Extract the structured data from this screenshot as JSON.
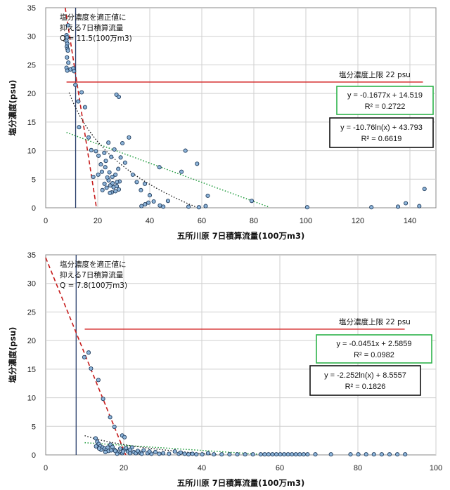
{
  "chart_data": [
    {
      "type": "scatter",
      "xlabel": "五所川原 7日積算流量(100万m3)",
      "ylabel": "塩分濃度(psu)",
      "xlim": [
        0,
        150
      ],
      "ylim": [
        0,
        35
      ],
      "xticks": [
        0,
        20,
        40,
        60,
        80,
        100,
        120,
        140
      ],
      "yticks": [
        0,
        5,
        10,
        15,
        20,
        25,
        30,
        35
      ],
      "grid": true,
      "annotation_lines": [
        "塩分濃度を適正値に",
        "抑える7日積算流量",
        "Q = 11.5(100万m3)"
      ],
      "threshold_label": "塩分濃度上限 22 psu",
      "threshold_y": 22,
      "threshold_x_range": [
        8,
        145
      ],
      "vertical_line_x": 11.5,
      "linear_eq": [
        "y = -0.1677x + 14.519",
        "R² = 0.2722"
      ],
      "log_eq": [
        "y = -10.76ln(x) + 43.793",
        "R² = 0.6619"
      ],
      "linear_fit": {
        "slope": -0.1677,
        "intercept": 14.519,
        "x_range": [
          8,
          86
        ]
      },
      "log_fit": {
        "a": -10.76,
        "b": 43.793,
        "x_range": [
          9,
          60
        ]
      },
      "red_line": {
        "x": [
          7.5,
          19.5
        ],
        "y": [
          35,
          0
        ]
      },
      "points": [
        [
          8,
          30.2
        ],
        [
          8.2,
          29.8
        ],
        [
          8,
          29.2
        ],
        [
          8.3,
          28.7
        ],
        [
          8.1,
          28.2
        ],
        [
          8.4,
          27.8
        ],
        [
          8.6,
          31.9
        ],
        [
          8.5,
          27.5
        ],
        [
          8.2,
          26.3
        ],
        [
          8.7,
          25.4
        ],
        [
          8,
          24.5
        ],
        [
          8.3,
          24
        ],
        [
          9.5,
          24.2
        ],
        [
          10.6,
          24.4
        ],
        [
          10.9,
          23.9
        ],
        [
          11.4,
          21.5
        ],
        [
          12.5,
          18.6
        ],
        [
          13.8,
          20.2
        ],
        [
          15.1,
          17.6
        ],
        [
          12.8,
          14.1
        ],
        [
          16.5,
          12.3
        ],
        [
          17.5,
          10.1
        ],
        [
          18.3,
          5.4
        ],
        [
          19.3,
          9.9
        ],
        [
          20.3,
          9.1
        ],
        [
          21.2,
          7.6
        ],
        [
          22.5,
          9.6
        ],
        [
          23.1,
          8.2
        ],
        [
          24.5,
          6.2
        ],
        [
          25.6,
          5.4
        ],
        [
          26.8,
          5.8
        ],
        [
          27.2,
          19.8
        ],
        [
          28.1,
          19.4
        ],
        [
          28.8,
          8.8
        ],
        [
          29.5,
          11.3
        ],
        [
          30.5,
          7.9
        ],
        [
          32,
          12.3
        ],
        [
          33.5,
          5.8
        ],
        [
          35,
          4.5
        ],
        [
          36.6,
          3.1
        ],
        [
          38.1,
          4.2
        ],
        [
          40,
          2.2
        ],
        [
          41.5,
          1.1
        ],
        [
          43.7,
          7.1
        ],
        [
          45.2,
          0.2
        ],
        [
          47,
          1.2
        ],
        [
          52.2,
          6.3
        ],
        [
          53.7,
          10
        ],
        [
          54.9,
          0.2
        ],
        [
          58.2,
          7.7
        ],
        [
          62.3,
          2.1
        ],
        [
          61.5,
          0.3
        ],
        [
          79.2,
          1.2
        ],
        [
          100.5,
          0.1
        ],
        [
          125.2,
          0.1
        ],
        [
          135.4,
          0.2
        ],
        [
          138.4,
          0.8
        ],
        [
          143.6,
          0.3
        ],
        [
          145.6,
          3.3
        ],
        [
          21.8,
          3.1
        ],
        [
          22.6,
          4.2
        ],
        [
          23.4,
          3.5
        ],
        [
          24.2,
          4.8
        ],
        [
          24.8,
          3.9
        ],
        [
          25.4,
          2.7
        ],
        [
          25.7,
          4.3
        ],
        [
          26.1,
          3.6
        ],
        [
          26.8,
          2.9
        ],
        [
          27.3,
          3.8
        ],
        [
          28.1,
          3.2
        ],
        [
          24.1,
          11.4
        ],
        [
          26.4,
          10.2
        ],
        [
          25.2,
          8.9
        ],
        [
          22.9,
          7.1
        ],
        [
          21.6,
          6.3
        ],
        [
          20.2,
          5.8
        ],
        [
          27.9,
          6.8
        ],
        [
          28.4,
          4.6
        ],
        [
          23.7,
          5.3
        ],
        [
          36.8,
          0.3
        ],
        [
          38.2,
          0.6
        ],
        [
          39.5,
          0.9
        ],
        [
          43.9,
          0.4
        ],
        [
          58.9,
          0.1
        ],
        [
          27.4,
          4.5
        ],
        [
          24.7,
          2.6
        ]
      ]
    },
    {
      "type": "scatter",
      "xlabel": "五所川原 7日積算流量(100万m3)",
      "ylabel": "塩分濃度(psu)",
      "xlim": [
        0,
        100
      ],
      "ylim": [
        0,
        35
      ],
      "xticks": [
        0,
        20,
        40,
        60,
        80,
        100
      ],
      "yticks": [
        0,
        5,
        10,
        15,
        20,
        25,
        30,
        35
      ],
      "grid": true,
      "annotation_lines": [
        "塩分濃度を適正値に",
        "抑える7日積算流量",
        "Q = 7.8(100万m3)"
      ],
      "threshold_label": "塩分濃度上限 22 psu",
      "threshold_y": 22,
      "threshold_x_range": [
        10,
        92
      ],
      "vertical_line_x": 7.8,
      "linear_eq": [
        "y = -0.0451x + 2.5859",
        "R² = 0.0982"
      ],
      "log_eq": [
        "y = -2.252ln(x) + 8.5557",
        "R² = 0.1826"
      ],
      "linear_fit": {
        "slope": -0.0451,
        "intercept": 2.5859,
        "x_range": [
          10,
          57
        ]
      },
      "log_fit": {
        "a": -2.252,
        "b": 8.5557,
        "x_range": [
          10,
          44
        ]
      },
      "red_line": {
        "x": [
          0,
          20.5
        ],
        "y": [
          34.5,
          0
        ]
      },
      "points": [
        [
          9.9,
          17.1
        ],
        [
          11,
          17.9
        ],
        [
          11.6,
          15.1
        ],
        [
          13.5,
          13.1
        ],
        [
          14.7,
          9.8
        ],
        [
          16.5,
          6.6
        ],
        [
          17.6,
          4.9
        ],
        [
          19.6,
          3.4
        ],
        [
          20.2,
          3.1
        ],
        [
          12.8,
          2.9
        ],
        [
          13.2,
          2.3
        ],
        [
          13.6,
          1.9
        ],
        [
          14,
          1.5
        ],
        [
          14.6,
          1.3
        ],
        [
          15.1,
          1.1
        ],
        [
          15.6,
          0.9
        ],
        [
          16.1,
          0.7
        ],
        [
          16.6,
          1.8
        ],
        [
          17.1,
          1.4
        ],
        [
          17.6,
          0.9
        ],
        [
          18.1,
          0.6
        ],
        [
          18.6,
          0.4
        ],
        [
          19.1,
          1.1
        ],
        [
          19.6,
          0.3
        ],
        [
          20.1,
          0.9
        ],
        [
          20.6,
          1.2
        ],
        [
          21.1,
          0.6
        ],
        [
          21.6,
          0.3
        ],
        [
          22.1,
          1.3
        ],
        [
          22.6,
          0.5
        ],
        [
          23.1,
          0.3
        ],
        [
          24.1,
          0.4
        ],
        [
          25.1,
          0.8
        ],
        [
          26.1,
          0.3
        ],
        [
          27.1,
          0.2
        ],
        [
          28.1,
          0.5
        ],
        [
          29.1,
          0.2
        ],
        [
          30.1,
          0.3
        ],
        [
          31.6,
          0.2
        ],
        [
          33.1,
          0.6
        ],
        [
          34.1,
          0.2
        ],
        [
          35.6,
          0.2
        ],
        [
          36.6,
          0.1
        ],
        [
          37.6,
          0.2
        ],
        [
          38.6,
          0.1
        ],
        [
          40.1,
          0.1
        ],
        [
          41.6,
          0.3
        ],
        [
          43.1,
          0.1
        ],
        [
          45.1,
          0.1
        ],
        [
          47.1,
          0.1
        ],
        [
          49.1,
          0.1
        ],
        [
          51.1,
          0.1
        ],
        [
          53.1,
          0.1
        ],
        [
          55.1,
          0.1
        ],
        [
          56.1,
          0.1
        ],
        [
          57.1,
          0.1
        ],
        [
          58.1,
          0.1
        ],
        [
          59.1,
          0.1
        ],
        [
          60.1,
          0.1
        ],
        [
          61.1,
          0.1
        ],
        [
          62.1,
          0.1
        ],
        [
          63.1,
          0.1
        ],
        [
          64.1,
          0.1
        ],
        [
          65.1,
          0.1
        ],
        [
          66.1,
          0.1
        ],
        [
          67.1,
          0.1
        ],
        [
          69.1,
          0.1
        ],
        [
          73.1,
          0.1
        ],
        [
          78.1,
          0.1
        ],
        [
          80.1,
          0.1
        ],
        [
          82.1,
          0.1
        ],
        [
          84.1,
          0.1
        ],
        [
          86.1,
          0.1
        ],
        [
          88.1,
          0.1
        ],
        [
          90.1,
          0.1
        ],
        [
          92.1,
          0.1
        ],
        [
          14.2,
          0.9
        ],
        [
          15.3,
          0.5
        ],
        [
          16.8,
          0.8
        ],
        [
          18.3,
          0.2
        ],
        [
          12.9,
          1.5
        ],
        [
          13.7,
          1.1
        ],
        [
          15.9,
          1.3
        ],
        [
          17.8,
          0.7
        ],
        [
          19.8,
          0.6
        ],
        [
          21.6,
          0.9
        ],
        [
          23.6,
          0.7
        ],
        [
          24.6,
          0.2
        ],
        [
          26.6,
          0.6
        ],
        [
          34.6,
          0.4
        ]
      ]
    }
  ]
}
